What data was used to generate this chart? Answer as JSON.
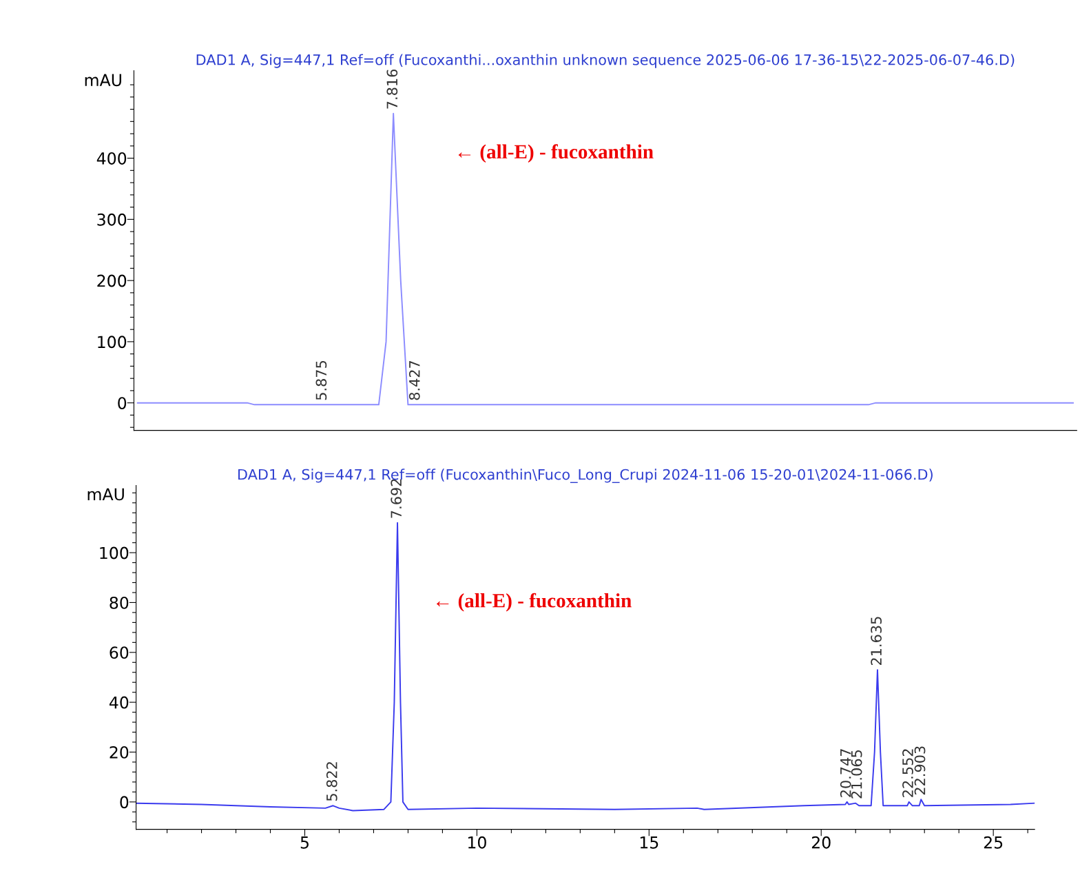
{
  "chart_data": [
    {
      "type": "line",
      "title": "DAD1 A, Sig=447,1 Ref=off (Fucoxanthi...oxanthin unknown sequence 2025-06-06 17-36-15\\22-2025-06-07-46.D)",
      "ylabel": "mAU",
      "categories": [
        null,
        null,
        null,
        null,
        null,
        null,
        null,
        null,
        null,
        null,
        null,
        null,
        null,
        null,
        null,
        null,
        null,
        null,
        null,
        null,
        null,
        null,
        null,
        null,
        null,
        null,
        null,
        null,
        null,
        null,
        null,
        null,
        null,
        null,
        null,
        null,
        null,
        null,
        null,
        null,
        null,
        null,
        null,
        null,
        null,
        null,
        null,
        null,
        null,
        null,
        null,
        null,
        null,
        null,
        null,
        null,
        null,
        null,
        null,
        null,
        null,
        null,
        null,
        null,
        null,
        null,
        null,
        null,
        null,
        null,
        null,
        null,
        null,
        null,
        null,
        null,
        null,
        null,
        null,
        null,
        null,
        null,
        null,
        null,
        null,
        null,
        null,
        null,
        null,
        null,
        null,
        null,
        null,
        null,
        null,
        null,
        null,
        null,
        null,
        null,
        null,
        null,
        null,
        null,
        null,
        null,
        null,
        null,
        null,
        null,
        null,
        null,
        null,
        null,
        null,
        null,
        null,
        null,
        null,
        null,
        null,
        null,
        null,
        null,
        null,
        null,
        null,
        null,
        null
      ],
      "series": [
        {
          "color": "#8c8cff",
          "values": [
            0,
            0,
            0,
            0,
            0,
            0,
            0,
            0,
            0,
            0,
            0,
            0,
            0,
            0,
            0,
            0,
            -3,
            -3,
            -3,
            -3,
            -3,
            -3,
            -3,
            -3,
            -3,
            -3,
            -3,
            -3,
            -3,
            -3,
            -3,
            -3,
            -3,
            -3,
            100,
            473,
            200,
            -3,
            -3,
            -3,
            -3,
            -3,
            -3,
            -3,
            -3,
            -3,
            -3,
            -3,
            -3,
            -3,
            -3,
            -3,
            -3,
            -3,
            -3,
            -3,
            -3,
            -3,
            -3,
            -3,
            -3,
            -3,
            -3,
            -3,
            -3,
            -3,
            -3,
            -3,
            -3,
            -3,
            -3,
            -3,
            -3,
            -3,
            -3,
            -3,
            -3,
            -3,
            -3,
            -3,
            -3,
            -3,
            -3,
            -3,
            -3,
            -3,
            -3,
            -3,
            -3,
            -3,
            -3,
            -3,
            -3,
            -3,
            -3,
            -3,
            -3,
            -3,
            -3,
            -3,
            -3,
            0,
            0,
            0,
            0,
            0,
            0,
            0,
            0,
            0,
            0,
            0,
            0,
            0,
            0,
            0,
            0,
            0,
            0,
            0,
            0,
            0,
            0,
            0,
            0,
            0,
            0,
            0,
            0
          ],
          "name": null
        }
      ],
      "ylim": [
        -45,
        543
      ],
      "yticks": [
        0,
        100,
        200,
        300,
        400,
        {
          "value": -40,
          "label": null
        },
        {
          "value": -20,
          "label": null
        },
        {
          "value": 20,
          "label": null
        },
        {
          "value": 40,
          "label": null
        },
        {
          "value": 60,
          "label": null
        },
        {
          "value": 80,
          "label": null
        },
        {
          "value": 120,
          "label": null
        },
        {
          "value": 140,
          "label": null
        },
        {
          "value": 160,
          "label": null
        },
        {
          "value": 180,
          "label": null
        },
        {
          "value": 220,
          "label": null
        },
        {
          "value": 240,
          "label": null
        },
        {
          "value": 260,
          "label": null
        },
        {
          "value": 280,
          "label": null
        },
        {
          "value": 320,
          "label": null
        },
        {
          "value": 340,
          "label": null
        },
        {
          "value": 360,
          "label": null
        },
        {
          "value": 380,
          "label": null
        },
        {
          "value": 420,
          "label": null
        },
        {
          "value": 440,
          "label": null
        },
        {
          "value": 460,
          "label": null
        },
        {
          "value": 480,
          "label": null
        },
        {
          "value": 500,
          "label": null
        },
        {
          "value": 520,
          "label": null
        }
      ],
      "tick_labels": "y",
      "annotations": [
        {
          "text": "5.875",
          "y": -3
        },
        {
          "text": "7.816",
          "y": 473
        },
        {
          "text": "8.427",
          "y": -3
        },
        "← (all-E) - fucoxanthin"
      ]
    },
    {
      "type": "line",
      "title": "DAD1 A, Sig=447,1 Ref=off (Fucoxanthin\\Fuco_Long_Crupi 2024-11-06 15-20-01\\2024-11-066.D)",
      "ylabel": "mAU",
      "series": [
        {
          "color": "#3a3aee",
          "x": [
            0.1,
            2,
            4,
            5.6,
            5.822,
            6.0,
            6.4,
            7.3,
            7.5,
            7.6,
            7.692,
            7.78,
            7.85,
            8.0,
            10,
            14,
            16.4,
            16.6,
            19.5,
            20.7,
            20.75,
            20.8,
            21.0,
            21.1,
            21.45,
            21.55,
            21.635,
            21.72,
            21.8,
            22.5,
            22.55,
            22.65,
            22.85,
            22.9,
            23.0,
            25.5,
            26.2
          ],
          "values": [
            -0.5,
            -1,
            -2,
            -2.5,
            -1.5,
            -2.5,
            -3.5,
            -3,
            0,
            40,
            112,
            40,
            0,
            -3,
            -2.5,
            -3,
            -2.5,
            -3,
            -1.5,
            -1,
            0,
            -1,
            -0.5,
            -1.5,
            -1.5,
            20,
            53,
            20,
            -1.5,
            -1.5,
            0,
            -1.5,
            -1.5,
            1,
            -1.5,
            -1,
            -0.5
          ]
        }
      ],
      "xlim": [
        0.1,
        26.2
      ],
      "ylim": [
        -11,
        127
      ],
      "xticks": [
        5,
        10,
        15,
        20,
        25,
        {
          "value": 1,
          "label": null
        },
        {
          "value": 2,
          "label": null
        },
        {
          "value": 3,
          "label": null
        },
        {
          "value": 4,
          "label": null
        },
        {
          "value": 6,
          "label": null
        },
        {
          "value": 7,
          "label": null
        },
        {
          "value": 8,
          "label": null
        },
        {
          "value": 9,
          "label": null
        },
        {
          "value": 11,
          "label": null
        },
        {
          "value": 12,
          "label": null
        },
        {
          "value": 13,
          "label": null
        },
        {
          "value": 14,
          "label": null
        },
        {
          "value": 16,
          "label": null
        },
        {
          "value": 17,
          "label": null
        },
        {
          "value": 18,
          "label": null
        },
        {
          "value": 19,
          "label": null
        },
        {
          "value": 21,
          "label": null
        },
        {
          "value": 22,
          "label": null
        },
        {
          "value": 23,
          "label": null
        },
        {
          "value": 24,
          "label": null
        },
        {
          "value": 26,
          "label": null
        }
      ],
      "yticks": [
        0,
        20,
        40,
        60,
        80,
        100,
        {
          "value": -8,
          "label": null
        },
        {
          "value": -4,
          "label": null
        },
        {
          "value": 4,
          "label": null
        },
        {
          "value": 8,
          "label": null
        },
        {
          "value": 12,
          "label": null
        },
        {
          "value": 16,
          "label": null
        },
        {
          "value": 24,
          "label": null
        },
        {
          "value": 28,
          "label": null
        },
        {
          "value": 32,
          "label": null
        },
        {
          "value": 36,
          "label": null
        },
        {
          "value": 44,
          "label": null
        },
        {
          "value": 48,
          "label": null
        },
        {
          "value": 52,
          "label": null
        },
        {
          "value": 56,
          "label": null
        },
        {
          "value": 64,
          "label": null
        },
        {
          "value": 68,
          "label": null
        },
        {
          "value": 72,
          "label": null
        },
        {
          "value": 76,
          "label": null
        },
        {
          "value": 84,
          "label": null
        },
        {
          "value": 88,
          "label": null
        },
        {
          "value": 92,
          "label": null
        },
        {
          "value": 96,
          "label": null
        },
        {
          "value": 104,
          "label": null
        },
        {
          "value": 108,
          "label": null
        },
        {
          "value": 112,
          "label": null
        },
        {
          "value": 116,
          "label": null
        },
        {
          "value": 120,
          "label": null
        },
        {
          "value": 124,
          "label": null
        }
      ],
      "annotations": [
        {
          "text": "5.822",
          "x": 5.822,
          "y": -1.5
        },
        {
          "text": "7.692",
          "x": 7.692,
          "y": 112
        },
        {
          "text": "20.747",
          "x": 20.747,
          "y": 0
        },
        {
          "text": "21.065",
          "x": 21.065,
          "y": -0.5
        },
        {
          "text": "21.635",
          "x": 21.635,
          "y": 53
        },
        {
          "text": "22.552",
          "x": 22.552,
          "y": 0
        },
        {
          "text": "22.903",
          "x": 22.903,
          "y": 1
        },
        "← (all-E) - fucoxanthin"
      ]
    }
  ]
}
